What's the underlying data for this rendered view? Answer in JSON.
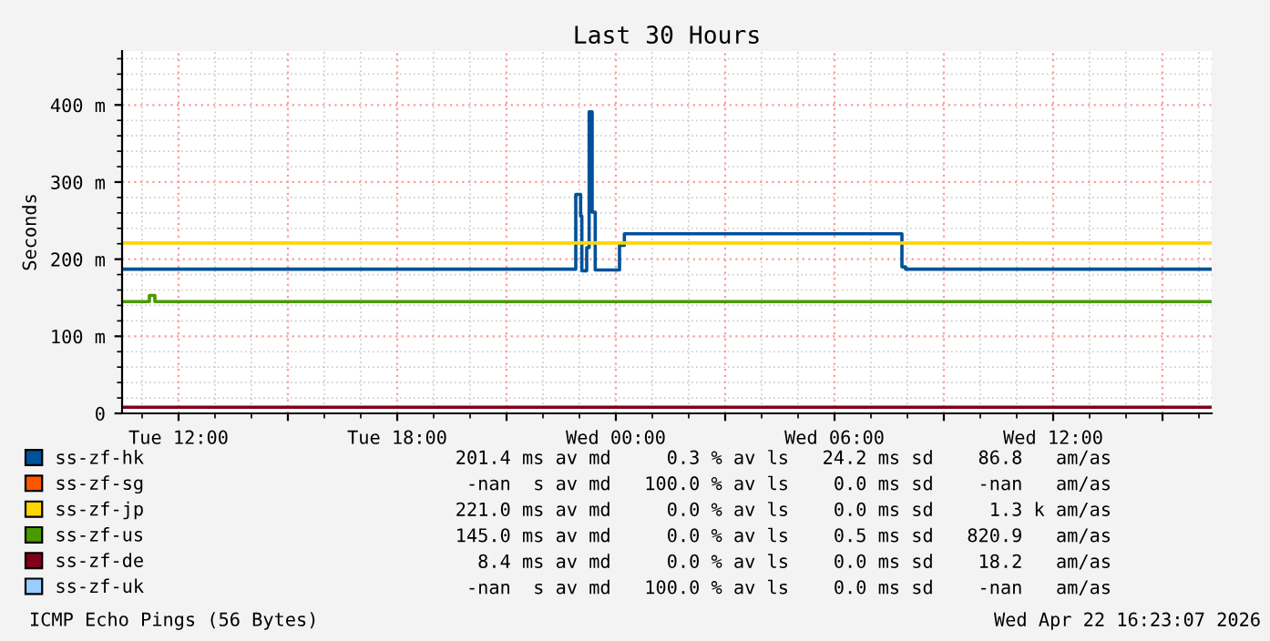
{
  "chart_data": {
    "type": "step",
    "title": "Last 30 Hours",
    "ylabel": "Seconds",
    "xlim": [
      "2026-04-21T10:27",
      "2026-04-22T16:21"
    ],
    "xticks": [
      {
        "value": "2026-04-21T12:00",
        "label": "Tue 12:00"
      },
      {
        "value": "2026-04-21T15:00",
        "label": null
      },
      {
        "value": "2026-04-21T18:00",
        "label": "Tue 18:00"
      },
      {
        "value": "2026-04-21T21:00",
        "label": null
      },
      {
        "value": "2026-04-22T00:00",
        "label": "Wed 00:00"
      },
      {
        "value": "2026-04-22T03:00",
        "label": null
      },
      {
        "value": "2026-04-22T06:00",
        "label": "Wed 06:00"
      },
      {
        "value": "2026-04-22T09:00",
        "label": null
      },
      {
        "value": "2026-04-22T12:00",
        "label": "Wed 12:00"
      },
      {
        "value": "2026-04-22T15:00",
        "label": null
      }
    ],
    "ylim": [
      0,
      470
    ],
    "yticks": [
      0,
      {
        "value": 100,
        "label": "100 m"
      },
      {
        "value": 200,
        "label": "200 m"
      },
      {
        "value": 300,
        "label": "300 m"
      },
      {
        "value": 400,
        "label": "400 m"
      }
    ],
    "grid": true,
    "legend": "bottom",
    "series": [
      {
        "name": "ss-zf-hk",
        "color": "#005199",
        "x": [
          "2026-04-21T10:27",
          "2026-04-21T22:54",
          "2026-04-21T23:02",
          "2026-04-21T23:04",
          "2026-04-21T23:12",
          "2026-04-21T23:16",
          "2026-04-21T23:21",
          "2026-04-21T23:26",
          "2026-04-22T00:06",
          "2026-04-22T00:14",
          "2026-04-22T07:51",
          "2026-04-22T07:57",
          "2026-04-22T16:21"
        ],
        "values": [
          187,
          284,
          256,
          185,
          215,
          391,
          261,
          186,
          218,
          233,
          190,
          187,
          187
        ]
      },
      {
        "name": "ss-zf-sg",
        "color": "#ff5500"
      },
      {
        "name": "ss-zf-jp",
        "color": "#ffd500",
        "x": [
          "2026-04-21T10:27",
          "2026-04-22T16:21"
        ],
        "values": [
          221,
          221
        ]
      },
      {
        "name": "ss-zf-us",
        "color": "#4b9a00",
        "x": [
          "2026-04-21T10:27",
          "2026-04-21T11:12",
          "2026-04-21T11:21",
          "2026-04-22T16:21"
        ],
        "values": [
          145,
          153,
          145,
          145
        ]
      },
      {
        "name": "ss-zf-de",
        "color": "#7f0019",
        "x": [
          "2026-04-21T10:27",
          "2026-04-22T16:21"
        ],
        "values": [
          8,
          8
        ]
      },
      {
        "name": "ss-zf-uk",
        "color": "#99ccff"
      }
    ],
    "annotations": [
      " 201.4 ms av md     0.3 % av ls   24.2 ms sd    86.8   am/as",
      "  -nan  s av md   100.0 % av ls    0.0 ms sd    -nan   am/as",
      " 221.0 ms av md     0.0 % av ls    0.0 ms sd     1.3 k am/as",
      " 145.0 ms av md     0.0 % av ls    0.5 ms sd   820.9   am/as",
      "   8.4 ms av md     0.0 % av ls    0.0 ms sd    18.2   am/as",
      "  -nan  s av md   100.0 % av ls    0.0 ms sd    -nan   am/as",
      "ICMP Echo Pings (56 Bytes)",
      "Wed Apr 22 16:23:07 2026"
    ]
  }
}
